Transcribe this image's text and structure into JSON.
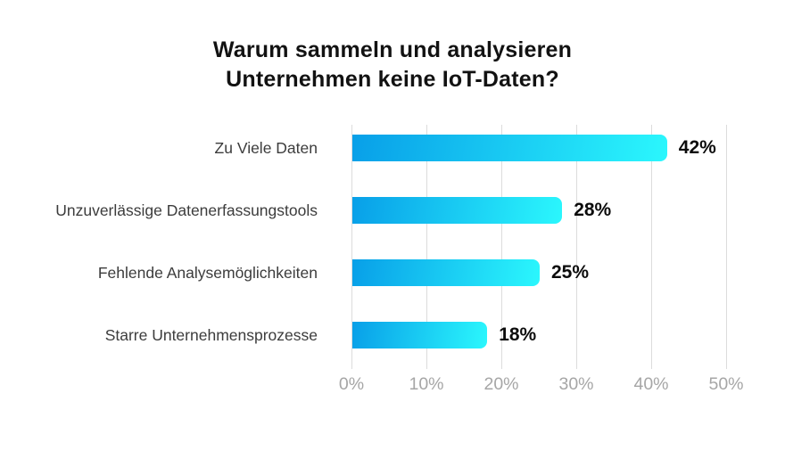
{
  "title": {
    "line1": "Warum sammeln und analysieren",
    "line2": "Unternehmen keine IoT-Daten?"
  },
  "chart_data": {
    "type": "bar",
    "orientation": "horizontal",
    "title": "Warum sammeln und analysieren Unternehmen keine IoT-Daten?",
    "categories": [
      "Zu Viele Daten",
      "Unzuverlässige Datenerfassungstools",
      "Fehlende Analysemöglichkeiten",
      "Starre Unternehmensprozesse"
    ],
    "values": [
      42,
      28,
      25,
      18
    ],
    "value_labels": [
      "42%",
      "28%",
      "25%",
      "18%"
    ],
    "x_tick_values": [
      0,
      10,
      20,
      30,
      40,
      50
    ],
    "x_tick_labels": [
      "0%",
      "10%",
      "20%",
      "30%",
      "40%",
      "50%"
    ],
    "xlim": [
      0,
      50
    ],
    "xlabel": "",
    "ylabel": "",
    "grid": true,
    "legend": false
  },
  "colors": {
    "bar_gradient_start": "#089fe8",
    "bar_gradient_end": "#2bf7fd",
    "gridline": "#dcdcdc",
    "tick_label": "#a6a6a6",
    "category_label": "#3c3c3c",
    "value_label": "#0c0c0c",
    "title": "#121212",
    "background": "#ffffff"
  }
}
